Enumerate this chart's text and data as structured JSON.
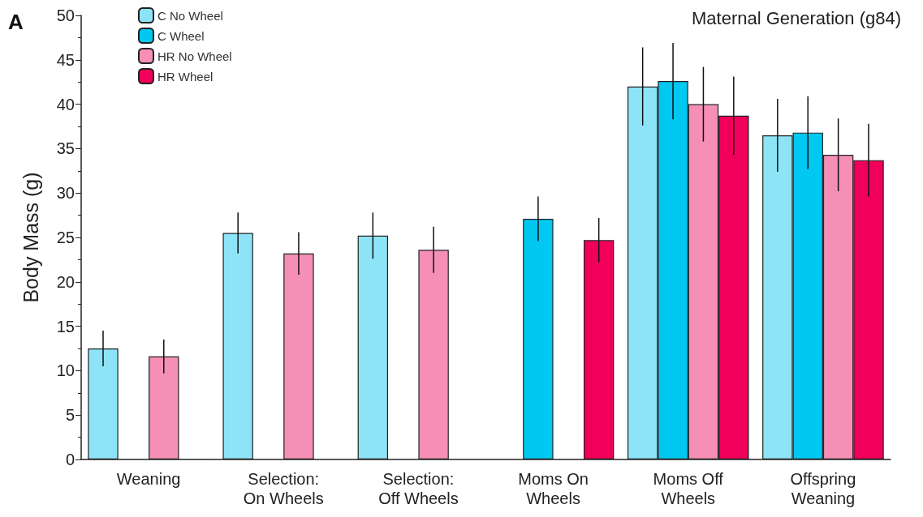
{
  "chart_data": {
    "type": "bar",
    "title": "Maternal Generation (g84)",
    "ylabel": "Body Mass (g)",
    "annotations": [
      "A"
    ],
    "categories": [
      "Weaning",
      "Selection:\nOn Wheels",
      "Selection:\nOff Wheels",
      "Moms On\nWheels",
      "Moms Off\nWheels",
      "Offspring\nWeaning"
    ],
    "series": [
      {
        "name": "C No Wheel",
        "color": "#8ee4f7",
        "values": [
          12.5,
          25.5,
          25.2,
          null,
          42.0,
          36.5
        ],
        "errors": [
          2.0,
          2.3,
          2.6,
          null,
          4.4,
          4.1
        ]
      },
      {
        "name": "C Wheel",
        "color": "#00c8f0",
        "values": [
          null,
          null,
          null,
          27.1,
          42.6,
          36.8
        ],
        "errors": [
          null,
          null,
          null,
          2.5,
          4.3,
          4.1
        ]
      },
      {
        "name": "HR No Wheel",
        "color": "#f58fb5",
        "values": [
          11.6,
          23.2,
          23.6,
          null,
          40.0,
          34.3
        ],
        "errors": [
          1.9,
          2.4,
          2.6,
          null,
          4.2,
          4.1
        ]
      },
      {
        "name": "HR Wheel",
        "color": "#f0005a",
        "values": [
          null,
          null,
          null,
          24.7,
          38.7,
          33.7
        ],
        "errors": [
          null,
          null,
          null,
          2.5,
          4.4,
          4.1
        ]
      }
    ],
    "ylim": [
      0,
      50
    ],
    "yticks": [
      0,
      5,
      10,
      15,
      20,
      25,
      30,
      35,
      40,
      45,
      50
    ],
    "grid": false,
    "legend": "top left"
  }
}
